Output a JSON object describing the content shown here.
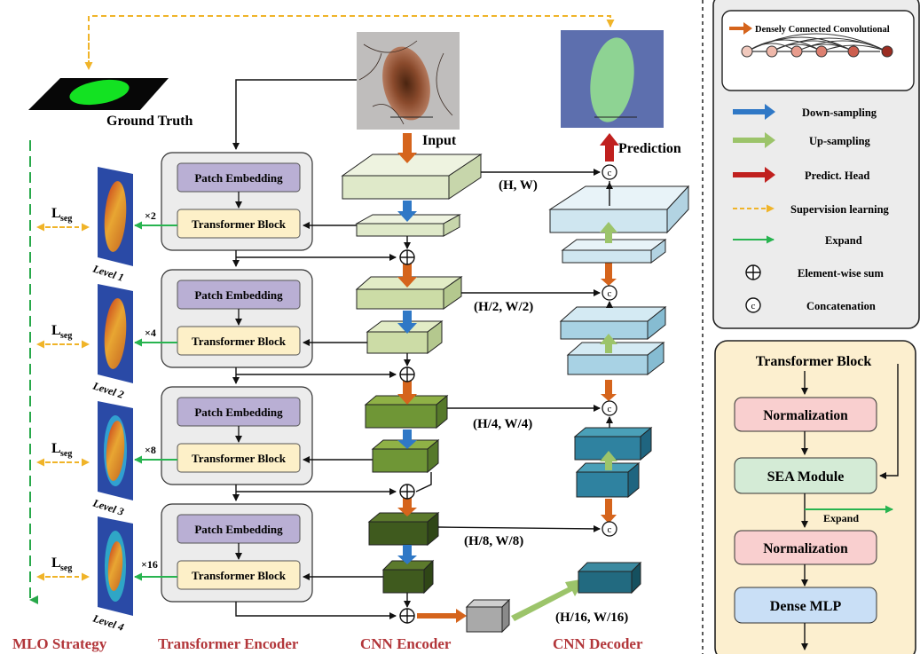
{
  "top": {
    "ground_truth": "Ground Truth",
    "input": "Input",
    "prediction": "Prediction"
  },
  "mlo": {
    "loss_main": "L",
    "loss_sub": "seg",
    "levels": [
      "Level 1",
      "Level 2",
      "Level 3",
      "Level 4"
    ]
  },
  "encoder_blocks": [
    {
      "patch": "Patch Embedding",
      "transformer": "Transformer Block",
      "repeat": "×2"
    },
    {
      "patch": "Patch Embedding",
      "transformer": "Transformer Block",
      "repeat": "×4"
    },
    {
      "patch": "Patch Embedding",
      "transformer": "Transformer Block",
      "repeat": "×8"
    },
    {
      "patch": "Patch Embedding",
      "transformer": "Transformer Block",
      "repeat": "×16"
    }
  ],
  "scales": [
    "(H, W)",
    "(H/2, W/2)",
    "(H/4, W/4)",
    "(H/8, W/8)",
    "(H/16, W/16)"
  ],
  "captions": {
    "mlo": "MLO Strategy",
    "encoder": "Transformer Encoder",
    "cnn_encoder": "CNN Encoder",
    "cnn_decoder": "CNN Decoder"
  },
  "legend": {
    "dense_conv": "Densely Connected Convolutional",
    "down": "Down-sampling",
    "up": "Up-sampling",
    "head": "Predict. Head",
    "supervision": "Supervision learning",
    "expand": "Expand",
    "sum": "Element-wise sum",
    "concat": "Concatenation",
    "concat_symbol": "c"
  },
  "tblock": {
    "title": "Transformer Block",
    "norm1": "Normalization",
    "sea": "SEA Module",
    "expand": "Expand",
    "norm2": "Normalization",
    "mlp": "Dense MLP"
  },
  "colors": {
    "dense_arrow": "#d5641c",
    "down_arrow": "#2f78c6",
    "up_arrow": "#9cc46a",
    "head_arrow": "#c0201e",
    "supervision": "#f0b429",
    "expand": "#28b450",
    "mlo_line": "#28a84a",
    "caption": "#b2363a"
  }
}
